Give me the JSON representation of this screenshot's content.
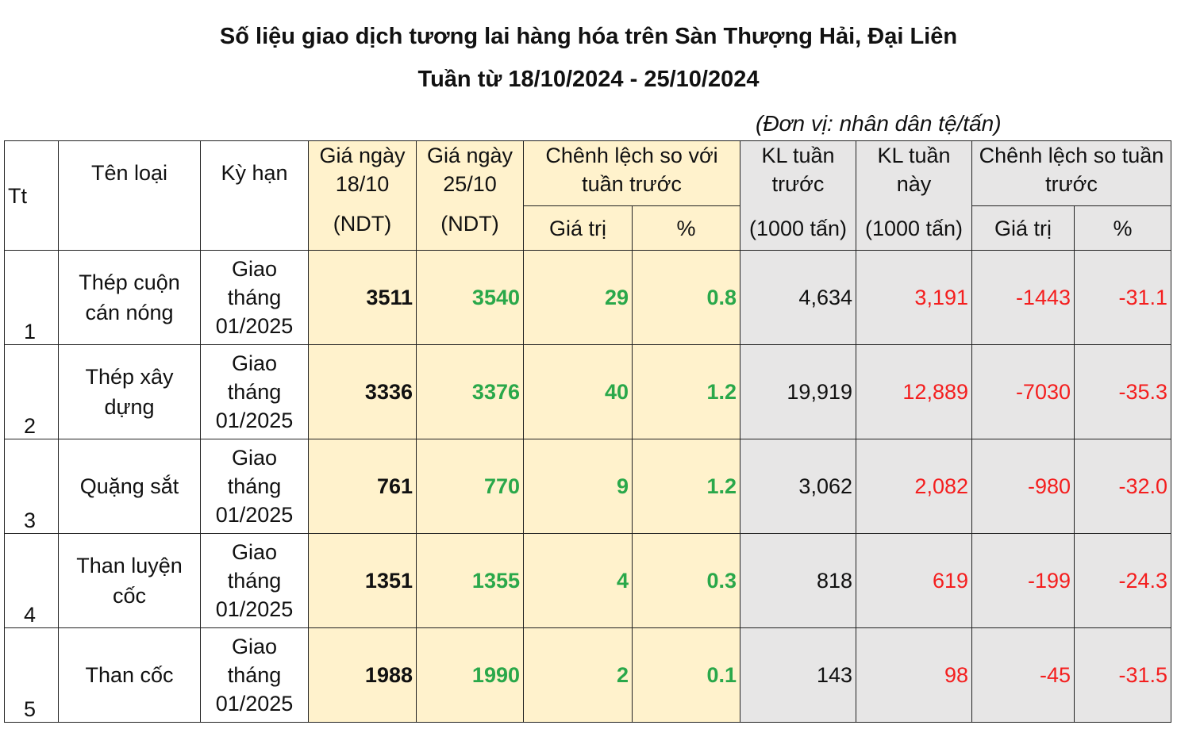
{
  "title": "Số liệu giao dịch tương lai hàng hóa trên Sàn Thượng Hải, Đại Liên",
  "subtitle": "Tuần từ 18/10/2024 - 25/10/2024",
  "unit": "(Đơn vị: nhân dân tệ/tấn)",
  "colors": {
    "price_bg": "#fff2cc",
    "volume_bg": "#e7e6e6",
    "increase": "#2aa84a",
    "decrease": "#f41e1e"
  },
  "headers": {
    "tt": "Tt",
    "name": "Tên loại",
    "term": "Kỳ hạn",
    "price1": "Giá ngày 18/10",
    "price1_unit": "(NDT)",
    "price2": "Giá ngày 25/10",
    "price2_unit": "(NDT)",
    "price_diff": "Chênh lệch so với tuần trước",
    "value": "Giá trị",
    "percent": "%",
    "vol_prev": "KL tuần trước",
    "vol_prev_unit": "(1000 tấn)",
    "vol_cur": "KL tuần này",
    "vol_cur_unit": "(1000 tấn)",
    "vol_diff": "Chênh lệch so tuần trước",
    "value2": "Giá trị",
    "percent2": "%"
  },
  "rows": [
    {
      "tt": "1",
      "name": "Thép cuộn cán nóng",
      "term": "Giao tháng 01/2025",
      "price1": "3511",
      "price2": "3540",
      "diff": "29",
      "pct": "0.8",
      "vol_prev": "4,634",
      "vol_cur": "3,191",
      "vol_diff": "-1443",
      "vol_pct": "-31.1"
    },
    {
      "tt": "2",
      "name": "Thép xây dựng",
      "term": "Giao tháng 01/2025",
      "price1": "3336",
      "price2": "3376",
      "diff": "40",
      "pct": "1.2",
      "vol_prev": "19,919",
      "vol_cur": "12,889",
      "vol_diff": "-7030",
      "vol_pct": "-35.3"
    },
    {
      "tt": "3",
      "name": "Quặng sắt",
      "term": "Giao tháng 01/2025",
      "price1": "761",
      "price2": "770",
      "diff": "9",
      "pct": "1.2",
      "vol_prev": "3,062",
      "vol_cur": "2,082",
      "vol_diff": "-980",
      "vol_pct": "-32.0"
    },
    {
      "tt": "4",
      "name": "Than luyện cốc",
      "term": "Giao tháng 01/2025",
      "price1": "1351",
      "price2": "1355",
      "diff": "4",
      "pct": "0.3",
      "vol_prev": "818",
      "vol_cur": "619",
      "vol_diff": "-199",
      "vol_pct": "-24.3"
    },
    {
      "tt": "5",
      "name": "Than cốc",
      "term": "Giao tháng 01/2025",
      "price1": "1988",
      "price2": "1990",
      "diff": "2",
      "pct": "0.1",
      "vol_prev": "143",
      "vol_cur": "98",
      "vol_diff": "-45",
      "vol_pct": "-31.5"
    }
  ]
}
